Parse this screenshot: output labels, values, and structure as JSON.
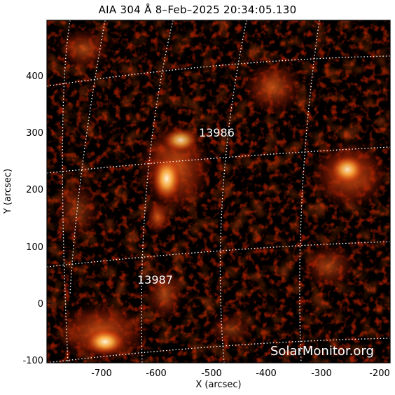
{
  "title": "AIA 304 Å  8–Feb–2025 20:34:05.130",
  "axes": {
    "x_label": "X (arcsec)",
    "y_label": "Y (arcsec)",
    "x_ticks": [
      "-700",
      "-600",
      "-500",
      "-400",
      "-300",
      "-200"
    ],
    "y_ticks": [
      "-100",
      "0",
      "100",
      "200",
      "300",
      "400"
    ]
  },
  "active_regions": [
    {
      "id": "13986"
    },
    {
      "id": "13987"
    }
  ],
  "watermark": "SolarMonitor.org",
  "colors": {
    "background": "#000000",
    "emission_dim": "#5a0a00",
    "emission_mid": "#c8380a",
    "emission_bright": "#ffb040",
    "emission_core": "#fff6d8",
    "grid": "#ffffff"
  }
}
